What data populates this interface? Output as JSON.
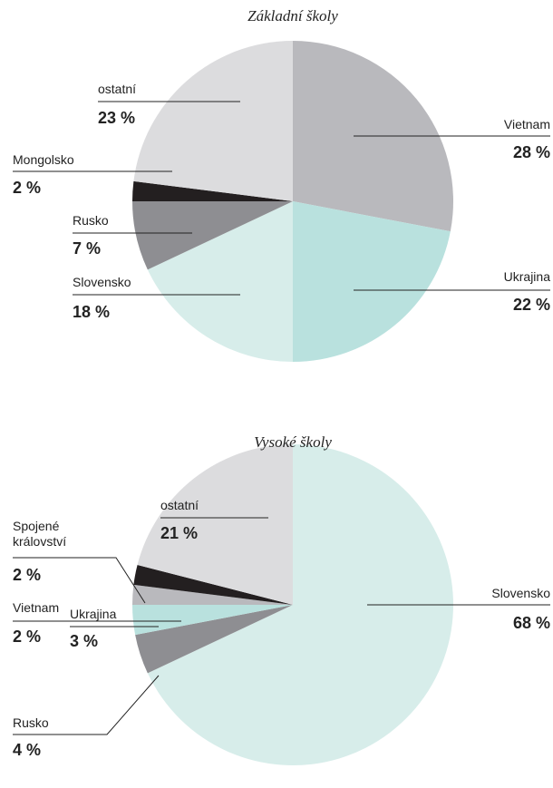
{
  "chart_data": [
    {
      "type": "pie",
      "title": "Základní školy",
      "categories": [
        "Vietnam",
        "Ukrajina",
        "Slovensko",
        "Rusko",
        "Mongolsko",
        "ostatní"
      ],
      "values": [
        28,
        22,
        18,
        7,
        2,
        23
      ],
      "value_labels": [
        "28 %",
        "22 %",
        "18 %",
        "7 %",
        "2 %",
        "23 %"
      ],
      "colors": [
        "#b9b9bd",
        "#b9e1de",
        "#d7edea",
        "#8e8e92",
        "#231f20",
        "#dcdcde"
      ]
    },
    {
      "type": "pie",
      "title": "Vysoké školy",
      "categories": [
        "Slovensko",
        "Rusko",
        "Ukrajina",
        "Vietnam",
        "Spojené království",
        "ostatní"
      ],
      "values": [
        68,
        4,
        3,
        2,
        2,
        21
      ],
      "value_labels": [
        "68 %",
        "4 %",
        "3 %",
        "2 %",
        "2 %",
        "21 %"
      ],
      "colors": [
        "#d7edea",
        "#8e8e92",
        "#b9e1de",
        "#b9b9bd",
        "#231f20",
        "#dcdcde"
      ]
    }
  ]
}
